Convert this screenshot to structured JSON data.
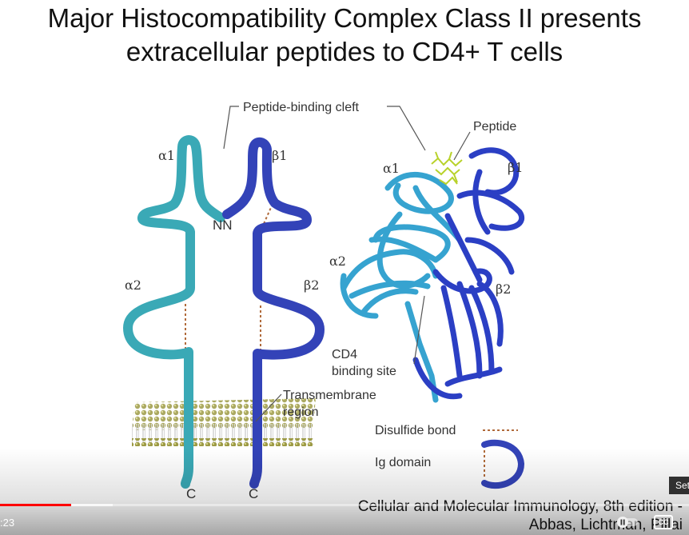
{
  "title": {
    "line1": "Major Histocompatibility Complex Class II presents",
    "line2": "extracellular peptides to CD4+ T cells"
  },
  "diagram": {
    "cleft_label": "Peptide-binding cleft",
    "peptide_label": "Peptide",
    "alpha1": "α1",
    "beta1": "β1",
    "alpha2": "α2",
    "beta2": "β2",
    "nn_label": "NN",
    "c_left": "C",
    "c_right": "C",
    "transmembrane_line1": "Transmembrane",
    "transmembrane_line2": "region",
    "cd4_line1": "CD4",
    "cd4_line2": "binding site",
    "legend_disulfide": "Disulfide bond",
    "legend_ig": "Ig domain",
    "colors": {
      "alpha_chain": "#3aa9b6",
      "beta_chain": "#3343b8",
      "disulfide": "#b06a3a",
      "peptide": "#b8d22a",
      "membrane": "#9c9a45"
    }
  },
  "citation": {
    "line1": "Cellular and Molecular Immunology, 8th edition -",
    "line2": "Abbas, Lichtman, Pillai"
  },
  "player": {
    "time": ":23",
    "progress": 0.103,
    "buffered": 0.163,
    "settings_tip": "Set",
    "cc_label": "CC"
  }
}
